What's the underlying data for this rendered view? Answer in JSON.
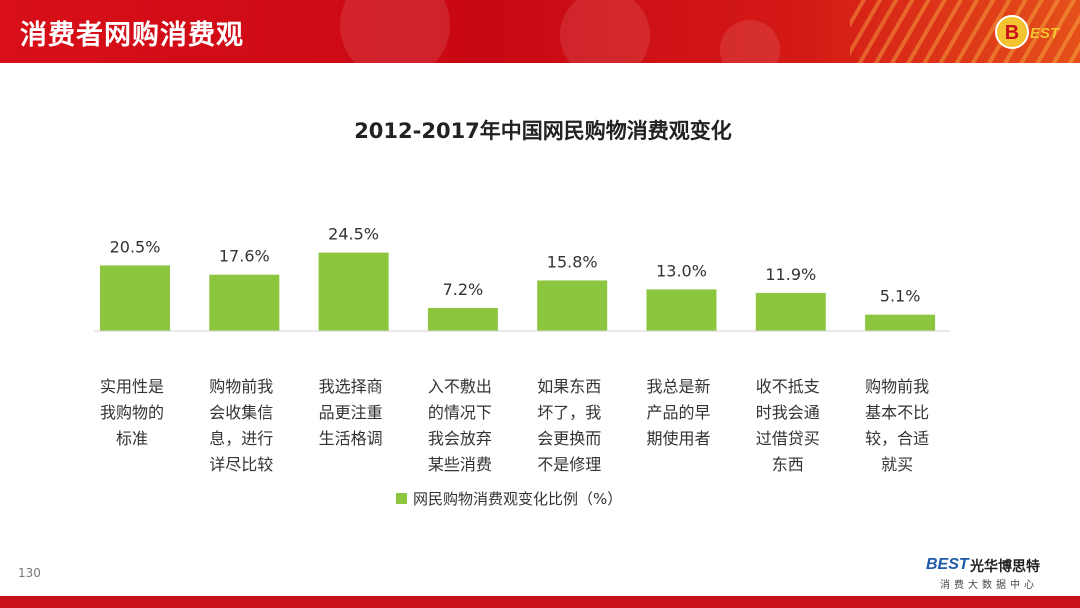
{
  "header": {
    "title": "消费者网购消费观"
  },
  "logos": {
    "top_right_text": "BEST"
  },
  "footer": {
    "page_number": "130",
    "brand_logo": "BEST",
    "brand_name": "光华博思特",
    "brand_tagline": "消费大数据中心"
  },
  "colors": {
    "header_red": "#d80f18",
    "bar_green": "#8cc63f",
    "footer_red": "#c81018",
    "brand_blue": "#1e5aa8"
  },
  "chart_data": {
    "type": "bar",
    "title": "2012-2017年中国网民购物消费观变化",
    "categories": [
      [
        "实用性是",
        "我购物的",
        "标准"
      ],
      [
        "购物前我",
        "会收集信",
        "息，进行",
        "详尽比较"
      ],
      [
        "我选择商",
        "品更注重",
        "生活格调"
      ],
      [
        "入不敷出",
        "的情况下",
        "我会放弃",
        "某些消费"
      ],
      [
        "如果东西",
        "坏了，我",
        "会更换而",
        "不是修理"
      ],
      [
        "我总是新",
        "产品的早",
        "期使用者"
      ],
      [
        "收不抵支",
        "时我会通",
        "过借贷买",
        "东西"
      ],
      [
        "购物前我",
        "基本不比",
        "较，合适",
        "就买"
      ]
    ],
    "series": [
      {
        "name": "网民购物消费观变化比例（%）",
        "values": [
          20.5,
          17.6,
          24.5,
          7.2,
          15.8,
          13.0,
          11.9,
          5.1
        ],
        "labels": [
          "20.5%",
          "17.6%",
          "24.5%",
          "7.2%",
          "15.8%",
          "13.0%",
          "11.9%",
          "5.1%"
        ]
      }
    ],
    "ylim": [
      0,
      30
    ],
    "grid": false,
    "legend": "bottom"
  }
}
